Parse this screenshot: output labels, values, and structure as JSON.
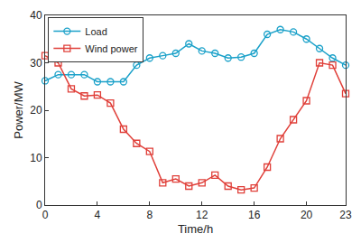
{
  "chart_data": {
    "type": "line",
    "x_label": "Time/h",
    "y_label": "Power/MW",
    "x": [
      0,
      1,
      2,
      3,
      4,
      5,
      6,
      7,
      8,
      9,
      10,
      11,
      12,
      13,
      14,
      15,
      16,
      17,
      18,
      19,
      20,
      21,
      22,
      23
    ],
    "series": [
      {
        "name": "Load",
        "color": "#1ba1c9",
        "marker": "circle-open",
        "line_style": "solid",
        "values": [
          26.2,
          27.5,
          27.5,
          27.5,
          26,
          26,
          26,
          29.5,
          31,
          31.5,
          32,
          34,
          32.5,
          32,
          31,
          31.2,
          32,
          36,
          37,
          36.5,
          35,
          33,
          31,
          29.5
        ]
      },
      {
        "name": "Wind power",
        "color": "#e0403a",
        "marker": "square-open",
        "line_style": "solid",
        "values": [
          31.5,
          30,
          24.5,
          23,
          23.2,
          21.5,
          16,
          13,
          11.3,
          4.7,
          5.5,
          4,
          4.7,
          6.3,
          4,
          3.2,
          3.6,
          8,
          14,
          18,
          22,
          30,
          29.5,
          23.5
        ]
      }
    ],
    "xlim": [
      0,
      23
    ],
    "xticks": [
      0,
      4,
      8,
      12,
      16,
      20,
      23
    ],
    "ylim": [
      0,
      40
    ],
    "yticks": [
      0,
      10,
      20,
      30,
      40
    ],
    "grid": false,
    "legend": "top-left"
  }
}
